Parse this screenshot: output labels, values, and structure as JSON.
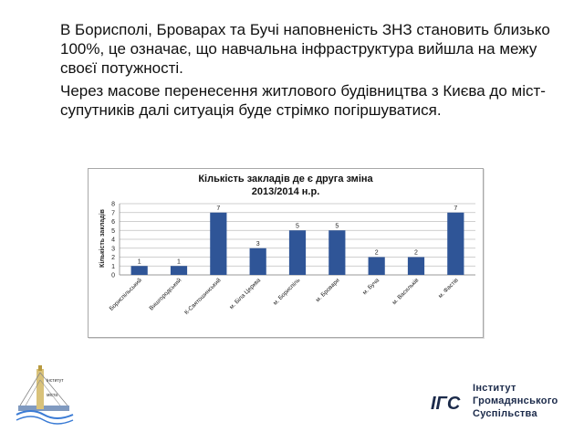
{
  "bullets": [
    "В Борисполі, Броварах та Бучі наповненість ЗНЗ становить близько 100%, це означає, що навчальна інфраструктура вийшла на межу своєї потужності.",
    "Через масове перенесення житлового будівництва з Києва до міст-супутників далі ситуація буде стрімко погіршуватися."
  ],
  "chart_data": {
    "type": "bar",
    "title": "Кількість закладів де є друга зміна",
    "subtitle": "2013/2014 н.р.",
    "ylabel": "Кількість закладів",
    "xlabel": "",
    "categories": [
      "Бориспільський",
      "Вишгородський",
      "К-Святошинський",
      "м. Біла Церква",
      "м. Бориспіль",
      "м. Бровари",
      "м. Буча",
      "м. Васильків",
      "м. Фастів"
    ],
    "values": [
      1,
      1,
      7,
      3,
      5,
      5,
      2,
      2,
      7
    ],
    "ylim": [
      0,
      8
    ],
    "yticks": [
      "0",
      "1",
      "2",
      "3",
      "4",
      "5",
      "6",
      "7",
      "8"
    ],
    "color": "#2f5597",
    "grid": true
  },
  "logo_left": {
    "text_top": "інститут",
    "text_bottom": "міста"
  },
  "org": {
    "mark": "ІГС",
    "lines": [
      "Інститут",
      "Громадянського",
      "Суспільства"
    ]
  }
}
